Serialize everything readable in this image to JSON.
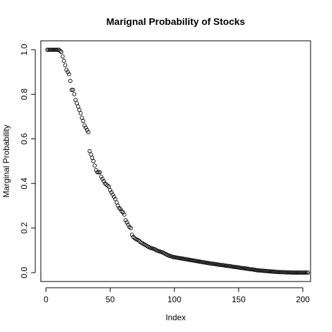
{
  "chart_data": {
    "type": "scatter",
    "title": "Marignal Probability of Stocks",
    "xlabel": "Index",
    "ylabel": "Marginal Probability",
    "xlim": [
      -4,
      206
    ],
    "ylim": [
      -0.04,
      1.04
    ],
    "xticks": [
      0,
      50,
      100,
      150,
      200
    ],
    "xtick_labels": [
      "0",
      "50",
      "100",
      "150",
      "200"
    ],
    "yticks": [
      0.0,
      0.2,
      0.4,
      0.6,
      0.8,
      1.0
    ],
    "ytick_labels": [
      "0.0",
      "0.2",
      "0.4",
      "0.6",
      "0.8",
      "1.0"
    ],
    "grid": false,
    "marker": "open-circle",
    "x_start": 1,
    "values": [
      1.0,
      1.0,
      1.0,
      1.0,
      1.0,
      1.0,
      1.0,
      1.0,
      1.0,
      1.0,
      0.995,
      0.99,
      0.97,
      0.95,
      0.93,
      0.91,
      0.9,
      0.89,
      0.86,
      0.82,
      0.82,
      0.8,
      0.775,
      0.76,
      0.745,
      0.73,
      0.715,
      0.695,
      0.68,
      0.66,
      0.65,
      0.64,
      0.63,
      0.545,
      0.53,
      0.515,
      0.5,
      0.48,
      0.46,
      0.45,
      0.45,
      0.45,
      0.43,
      0.42,
      0.41,
      0.4,
      0.395,
      0.39,
      0.385,
      0.37,
      0.36,
      0.35,
      0.34,
      0.33,
      0.315,
      0.3,
      0.29,
      0.285,
      0.275,
      0.27,
      0.26,
      0.235,
      0.225,
      0.215,
      0.205,
      0.2,
      0.17,
      0.16,
      0.155,
      0.15,
      0.148,
      0.145,
      0.14,
      0.135,
      0.132,
      0.128,
      0.125,
      0.122,
      0.118,
      0.115,
      0.112,
      0.11,
      0.108,
      0.106,
      0.104,
      0.1,
      0.098,
      0.096,
      0.094,
      0.092,
      0.09,
      0.087,
      0.084,
      0.081,
      0.078,
      0.076,
      0.074,
      0.072,
      0.07,
      0.069,
      0.068,
      0.067,
      0.066,
      0.065,
      0.064,
      0.063,
      0.062,
      0.061,
      0.06,
      0.059,
      0.058,
      0.057,
      0.056,
      0.055,
      0.054,
      0.053,
      0.052,
      0.051,
      0.05,
      0.049,
      0.048,
      0.047,
      0.046,
      0.045,
      0.044,
      0.043,
      0.042,
      0.041,
      0.04,
      0.04,
      0.039,
      0.038,
      0.037,
      0.036,
      0.035,
      0.034,
      0.034,
      0.033,
      0.032,
      0.031,
      0.03,
      0.03,
      0.029,
      0.028,
      0.027,
      0.026,
      0.025,
      0.025,
      0.024,
      0.023,
      0.022,
      0.021,
      0.02,
      0.02,
      0.019,
      0.018,
      0.017,
      0.016,
      0.015,
      0.015,
      0.014,
      0.013,
      0.012,
      0.011,
      0.01,
      0.01,
      0.009,
      0.009,
      0.008,
      0.008,
      0.007,
      0.007,
      0.006,
      0.006,
      0.005,
      0.005,
      0.004,
      0.004,
      0.003,
      0.003,
      0.003,
      0.002,
      0.002,
      0.002,
      0.002,
      0.001,
      0.001,
      0.001,
      0.001,
      0.001,
      0.0,
      0.0,
      0.0,
      0.0,
      0.0,
      0.0,
      0.0,
      0.0,
      0.0,
      0.0,
      0.0,
      0.0,
      0.0,
      0.0
    ]
  }
}
